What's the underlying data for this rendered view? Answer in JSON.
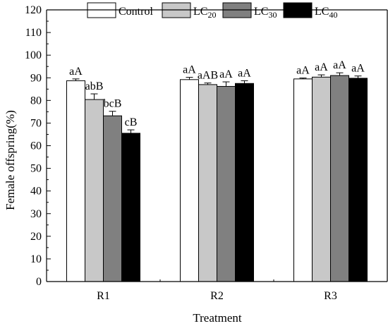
{
  "chart_data": {
    "type": "bar",
    "title": "",
    "xlabel": "Treatment",
    "ylabel": "Female offspring(%)",
    "ylim": [
      0,
      120
    ],
    "yticks": [
      0,
      10,
      20,
      30,
      40,
      50,
      60,
      70,
      80,
      90,
      100,
      110,
      120
    ],
    "categories": [
      "R1",
      "R2",
      "R3"
    ],
    "legend_position": "top",
    "series": [
      {
        "name": "Control",
        "name_base": "Control",
        "name_sub": "",
        "color": "#ffffff",
        "values": [
          88.7,
          89.2,
          89.5
        ],
        "errors": [
          0.8,
          1.0,
          0.4
        ],
        "labels": [
          "aA",
          "aA",
          "aA"
        ]
      },
      {
        "name": "LC20",
        "name_base": "LC",
        "name_sub": "20",
        "color": "#c8c8c8",
        "values": [
          80.4,
          87.0,
          90.3
        ],
        "errors": [
          2.5,
          0.7,
          1.0
        ],
        "labels": [
          "abB",
          "aAB",
          "aA"
        ]
      },
      {
        "name": "LC30",
        "name_base": "LC",
        "name_sub": "30",
        "color": "#808080",
        "values": [
          73.2,
          86.2,
          91.0
        ],
        "errors": [
          2.0,
          2.0,
          1.2
        ],
        "labels": [
          "bcB",
          "aA",
          "aA"
        ]
      },
      {
        "name": "LC40",
        "name_base": "LC",
        "name_sub": "40",
        "color": "#000000",
        "values": [
          65.5,
          87.5,
          89.8
        ],
        "errors": [
          1.5,
          1.2,
          1.0
        ],
        "labels": [
          "cB",
          "aA",
          "aA"
        ]
      }
    ],
    "grid": false
  }
}
